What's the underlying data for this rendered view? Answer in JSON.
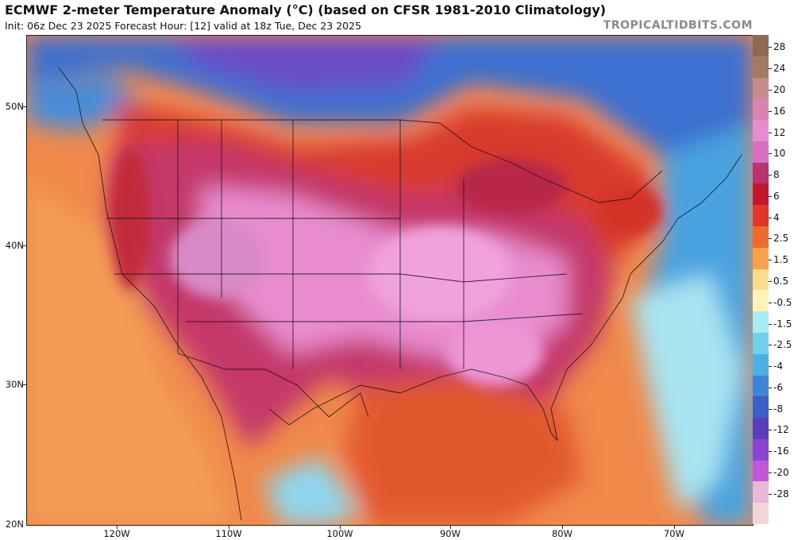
{
  "header": {
    "title": "ECMWF 2-meter Temperature Anomaly (°C) (based on CFSR 1981-2010 Climatology)",
    "subtitle": "Init: 06z Dec 23 2025   Forecast Hour: [12]  valid at 18z Tue, Dec 23 2025",
    "brand": "TROPICALTIDBITS.COM"
  },
  "map": {
    "lat_labels": [
      "50N",
      "40N",
      "30N",
      "20N"
    ],
    "lon_labels": [
      "120W",
      "110W",
      "100W",
      "90W",
      "80W",
      "70W"
    ]
  },
  "colorbar": {
    "labels": [
      "28",
      "24",
      "20",
      "16",
      "12",
      "10",
      "8",
      "6",
      "4",
      "2.5",
      "1.5",
      "0.5",
      "-0.5",
      "-1.5",
      "-2.5",
      "-4",
      "-6",
      "-8",
      "-12",
      "-16",
      "-20",
      "-28"
    ],
    "colors": [
      "#8c6b4e",
      "#a37a62",
      "#c68c8c",
      "#d884b0",
      "#e68ccf",
      "#d96ec2",
      "#b8336f",
      "#c2182e",
      "#e3352a",
      "#ef6a2e",
      "#f6a34a",
      "#fbdc8c",
      "#fff4b8",
      "#a6ecf2",
      "#6fd2ea",
      "#4cb1e2",
      "#3d86d6",
      "#3b5fc4",
      "#5a3ec0",
      "#8b45d2",
      "#c157d8",
      "#e8b8d8",
      "#f2d6dc"
    ]
  }
}
